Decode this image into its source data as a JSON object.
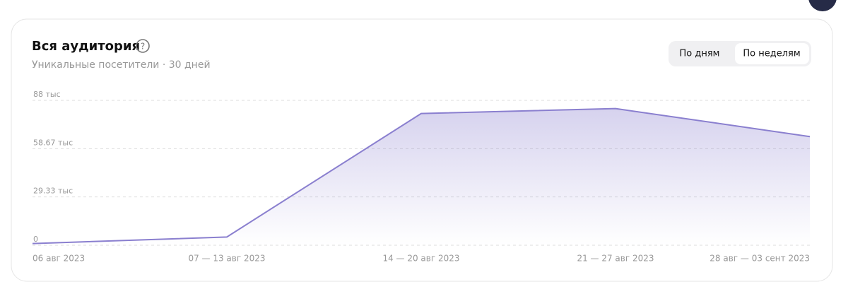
{
  "chart_data": {
    "type": "area",
    "title": "Вся аудитория",
    "subtitle": "Уникальные посетители · 30 дней",
    "categories": [
      "06 авг 2023",
      "07 — 13 авг 2023",
      "14 — 20 авг 2023",
      "21 — 27 авг 2023",
      "28 авг — 03 сент 2023"
    ],
    "values": [
      1000,
      5000,
      80000,
      83000,
      66000
    ],
    "color": "#8a7fcf",
    "ylim": [
      0,
      88000
    ],
    "yticks": [
      0,
      {
        "value": 29330,
        "label": "29.33 тыс"
      },
      {
        "value": 58670,
        "label": "58.67 тыс"
      },
      {
        "value": 88000,
        "label": "88 тыс"
      }
    ],
    "grid": true
  },
  "controls": [
    "По дням",
    "По неделям"
  ]
}
